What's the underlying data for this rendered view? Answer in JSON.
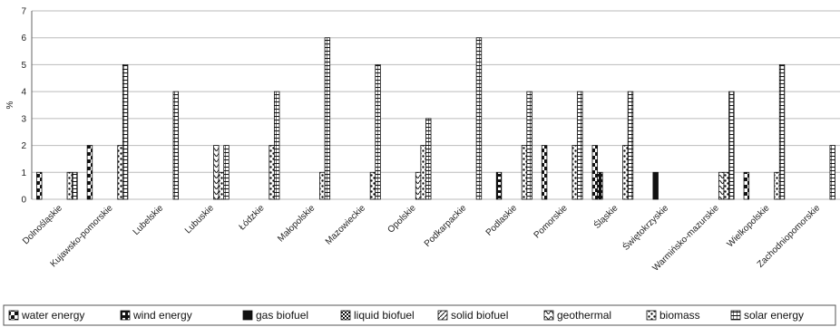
{
  "chart_data": {
    "type": "bar",
    "ylabel": "%",
    "ylim": [
      0,
      7
    ],
    "yticks": [
      0,
      1,
      2,
      3,
      4,
      5,
      6,
      7
    ],
    "grid": true,
    "legend_position": "bottom",
    "categories": [
      "Dolnośląskie",
      "Kujawsko-pomorskie",
      "Lubelskie",
      "Lubuskie",
      "Łódzkie",
      "Małopolskie",
      "Mazowieckie",
      "Opolskie",
      "Podkarpackie",
      "Podlaskie",
      "Pomorskie",
      "Śląskie",
      "Świętokrzyskie",
      "Warmińsko-mazurskie",
      "Wielkopolskie",
      "Zachodniopomorskie"
    ],
    "series": [
      {
        "name": "water energy",
        "pattern": "water",
        "values": [
          1,
          2,
          0,
          0,
          0,
          0,
          0,
          0,
          0,
          0,
          2,
          2,
          0,
          0,
          1,
          0
        ]
      },
      {
        "name": "wind energy",
        "pattern": "wind",
        "values": [
          0,
          0,
          0,
          0,
          0,
          0,
          0,
          0,
          0,
          1,
          0,
          1,
          0,
          0,
          0,
          0
        ]
      },
      {
        "name": "gas biofuel",
        "pattern": "gas",
        "values": [
          0,
          0,
          0,
          0,
          0,
          0,
          0,
          0,
          0,
          0,
          0,
          0,
          1,
          0,
          0,
          0
        ]
      },
      {
        "name": "liquid biofuel",
        "pattern": "liquid",
        "values": [
          0,
          0,
          0,
          0,
          0,
          0,
          0,
          0,
          0,
          0,
          0,
          0,
          0,
          0,
          0,
          0
        ]
      },
      {
        "name": "solid biofuel",
        "pattern": "solid",
        "values": [
          0,
          0,
          0,
          0,
          0,
          0,
          0,
          0,
          0,
          0,
          0,
          0,
          0,
          0,
          0,
          0
        ]
      },
      {
        "name": "geothermal",
        "pattern": "geo",
        "values": [
          0,
          0,
          0,
          2,
          0,
          0,
          0,
          1,
          0,
          0,
          0,
          0,
          0,
          1,
          0,
          0
        ]
      },
      {
        "name": "biomass",
        "pattern": "biomass",
        "values": [
          1,
          2,
          0,
          1,
          2,
          1,
          1,
          2,
          0,
          2,
          2,
          2,
          0,
          1,
          1,
          0
        ]
      },
      {
        "name": "solar energy",
        "pattern": "solar",
        "values": [
          1,
          5,
          4,
          2,
          4,
          6,
          5,
          3,
          6,
          4,
          4,
          4,
          0,
          4,
          5,
          2
        ]
      }
    ]
  }
}
